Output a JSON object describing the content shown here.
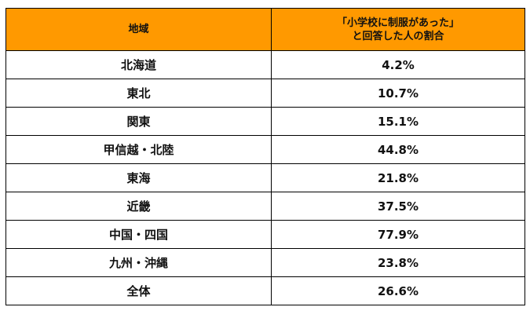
{
  "table": {
    "header": {
      "region": "地域",
      "rate_line1": "「小学校に制服があった」",
      "rate_line2": "と回答した人の割合"
    },
    "rows": [
      {
        "region": "北海道",
        "rate": "4.2%"
      },
      {
        "region": "東北",
        "rate": "10.7%"
      },
      {
        "region": "関東",
        "rate": "15.1%"
      },
      {
        "region": "甲信越・北陸",
        "rate": "44.8%"
      },
      {
        "region": "東海",
        "rate": "21.8%"
      },
      {
        "region": "近畿",
        "rate": "37.5%"
      },
      {
        "region": "中国・四国",
        "rate": "77.9%"
      },
      {
        "region": "九州・沖縄",
        "rate": "23.8%"
      },
      {
        "region": "全体",
        "rate": "26.6%"
      }
    ],
    "colors": {
      "header_bg": "#ff9900",
      "border": "#000000",
      "cell_bg": "#ffffff"
    }
  }
}
